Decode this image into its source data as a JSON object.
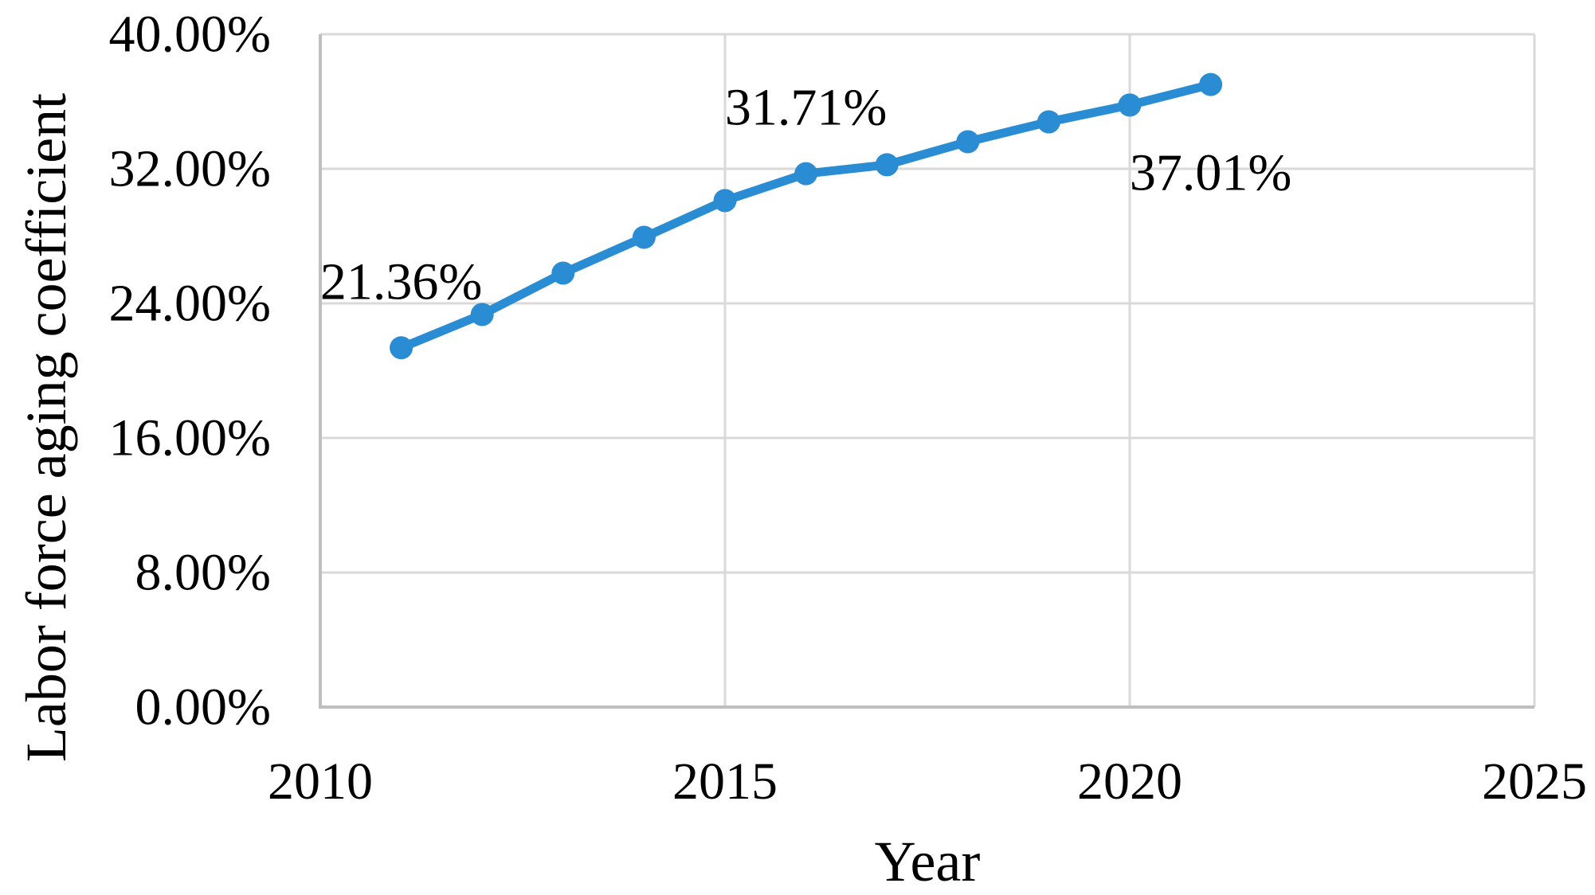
{
  "chart_data": {
    "type": "line",
    "title": "",
    "xlabel": "Year",
    "ylabel": "Labor force aging coefficient",
    "x": [
      2011,
      2012,
      2013,
      2014,
      2015,
      2016,
      2017,
      2018,
      2019,
      2020,
      2021
    ],
    "values": [
      21.36,
      23.34,
      25.8,
      27.93,
      30.11,
      31.71,
      32.24,
      33.61,
      34.79,
      35.79,
      37.01
    ],
    "xlim": [
      2010,
      2025
    ],
    "ylim": [
      0,
      40
    ],
    "xtick_values": [
      2010,
      2015,
      2020,
      2025
    ],
    "xtick_labels": [
      "2010",
      "2015",
      "2020",
      "2025"
    ],
    "ytick_values": [
      0,
      8,
      16,
      24,
      32,
      40
    ],
    "ytick_labels": [
      "0.00%",
      "8.00%",
      "16.00%",
      "24.00%",
      "32.00%",
      "40.00%"
    ],
    "grid": true,
    "legend": "none",
    "annotations": [
      {
        "x": 2011,
        "value": 21.36,
        "label": "21.36%",
        "position": "above"
      },
      {
        "x": 2016,
        "value": 31.71,
        "label": "31.71%",
        "position": "above"
      },
      {
        "x": 2021,
        "value": 37.01,
        "label": "37.01%",
        "position": "below"
      }
    ],
    "colors": {
      "line": "#2a8cd2",
      "marker": "#2a8cd2",
      "gridline": "#d9d9d9",
      "axis": "#bfbfbf",
      "text": "#000000"
    }
  }
}
